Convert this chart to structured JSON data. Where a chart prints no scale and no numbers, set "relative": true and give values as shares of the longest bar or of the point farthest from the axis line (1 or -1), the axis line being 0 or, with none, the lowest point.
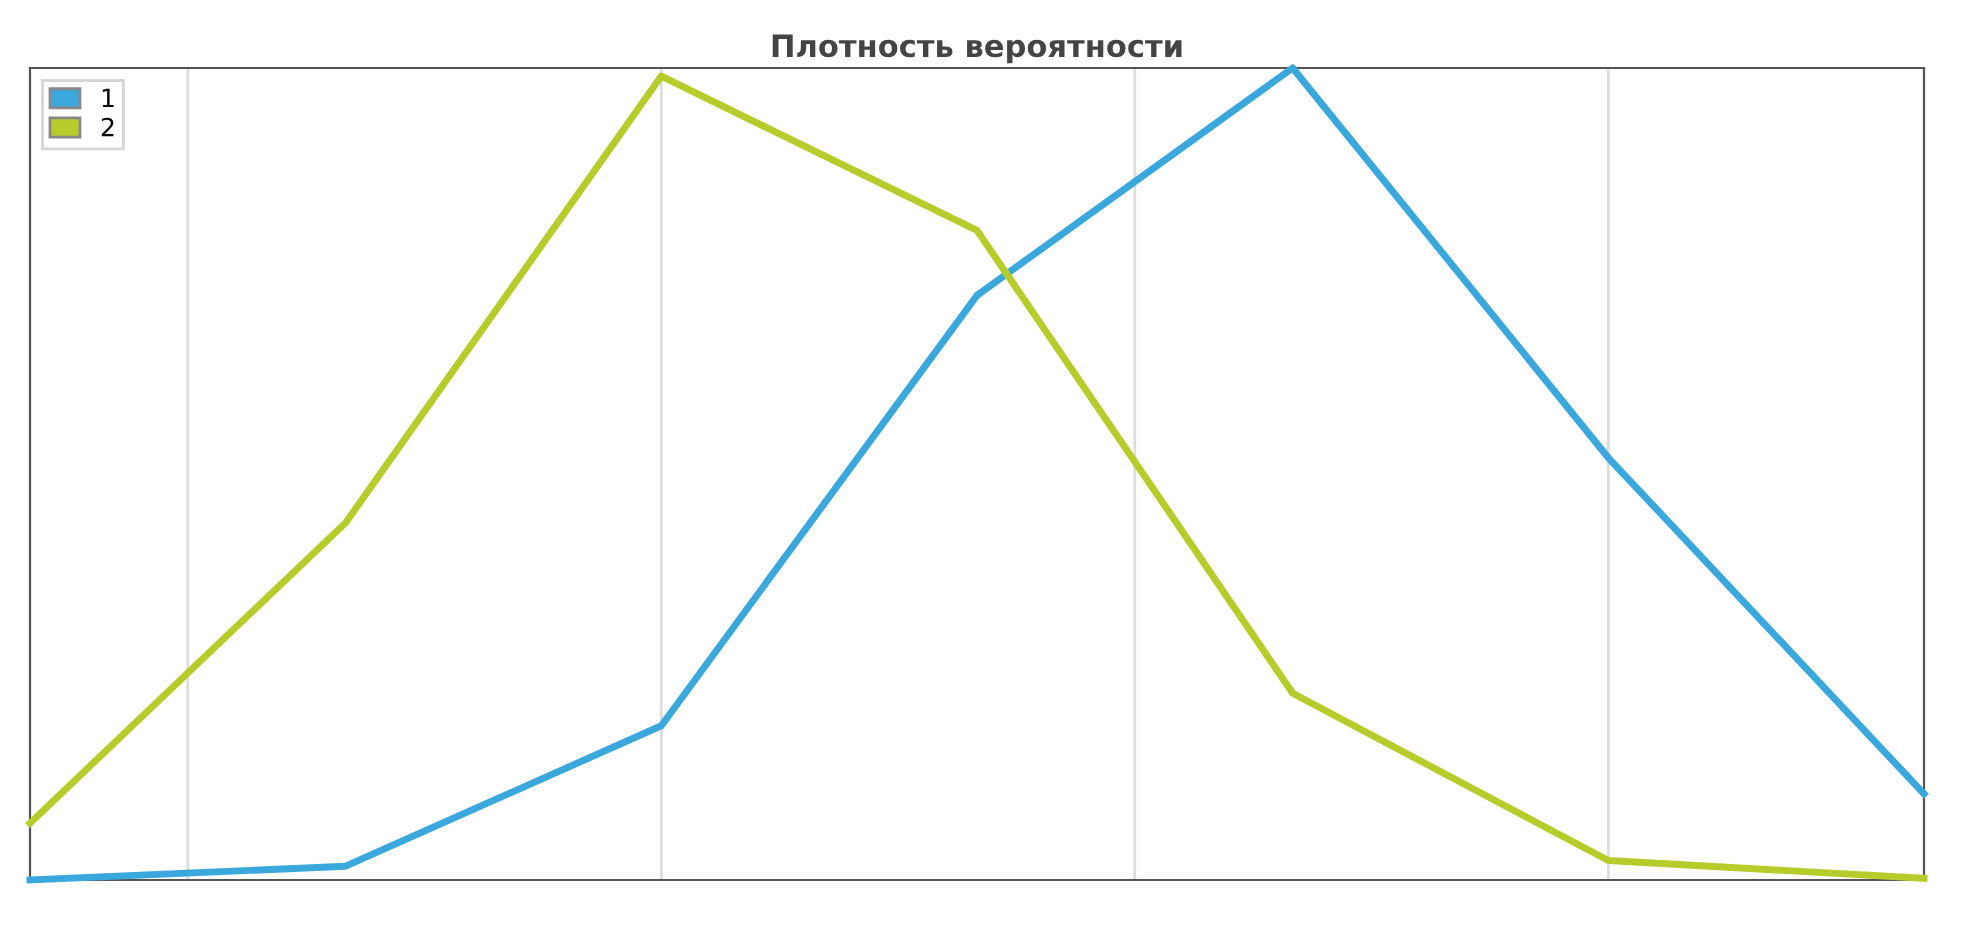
{
  "chart_data": {
    "type": "line",
    "title": "Плотность вероятности",
    "relative": true,
    "categories": [
      null,
      null,
      null,
      null,
      null,
      null,
      null
    ],
    "series": [
      {
        "name": "1",
        "color": "#3aa8dc",
        "values": [
          0,
          0.017,
          0.19,
          0.72,
          1,
          0.52,
          0.106
        ]
      },
      {
        "name": "2",
        "color": "#b5cc2a",
        "values": [
          0.07,
          0.44,
          0.99,
          0.8,
          0.23,
          0.024,
          0.002
        ]
      }
    ],
    "legend": "top left",
    "marker": "none",
    "line_style": "solid"
  }
}
